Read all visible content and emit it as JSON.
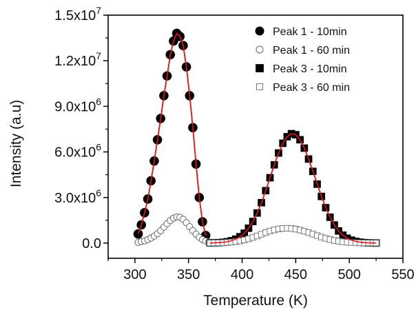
{
  "chart_data": {
    "type": "scatter",
    "xlabel": "Temperature (K)",
    "ylabel": "Intensity (a.u)",
    "xlim": [
      275,
      550
    ],
    "ylim": [
      -1000000,
      15000000
    ],
    "x_ticks": [
      300,
      350,
      400,
      450,
      500,
      550
    ],
    "x_tick_labels": [
      "300",
      "350",
      "400",
      "450",
      "500",
      "550"
    ],
    "y_ticks": [
      0,
      3000000,
      6000000,
      9000000,
      12000000,
      15000000
    ],
    "y_tick_labels": [
      {
        "mantissa": "0.0",
        "exp": ""
      },
      {
        "mantissa": "3.0x10",
        "exp": "6"
      },
      {
        "mantissa": "6.0x10",
        "exp": "6"
      },
      {
        "mantissa": "9.0x10",
        "exp": "6"
      },
      {
        "mantissa": "1.2x10",
        "exp": "7"
      },
      {
        "mantissa": "1.5x10",
        "exp": "7"
      }
    ],
    "legend_position": "top-right",
    "grid": false,
    "fit_color": "#e8141e",
    "series": [
      {
        "name": "Peak 1 - 10min",
        "marker": "circle-filled",
        "x": [
          303,
          306,
          309,
          312,
          315,
          318,
          321,
          324,
          327,
          330,
          333,
          336,
          339,
          342,
          345,
          348,
          351,
          354,
          357,
          360,
          363,
          366
        ],
        "y": [
          600000,
          1200000,
          2000000,
          2900000,
          4100000,
          5400000,
          6800000,
          8200000,
          9700000,
          11000000,
          12400000,
          13300000,
          13800000,
          13600000,
          13000000,
          11600000,
          9700000,
          7600000,
          5200000,
          3000000,
          1400000,
          500000
        ]
      },
      {
        "name": "Peak 1 - 60 min",
        "marker": "circle-open",
        "x": [
          303,
          306,
          309,
          312,
          315,
          318,
          321,
          324,
          327,
          330,
          333,
          336,
          339,
          342,
          345,
          348,
          351,
          354,
          357,
          360,
          363,
          366,
          369,
          372
        ],
        "y": [
          50000,
          100000,
          150000,
          230000,
          330000,
          460000,
          620000,
          820000,
          1050000,
          1280000,
          1480000,
          1640000,
          1720000,
          1700000,
          1560000,
          1340000,
          1080000,
          820000,
          580000,
          380000,
          230000,
          130000,
          70000,
          40000
        ]
      },
      {
        "name": "Peak 3 - 10min",
        "marker": "square-filled",
        "x": [
          370,
          374,
          378,
          382,
          386,
          390,
          394,
          398,
          402,
          406,
          410,
          414,
          418,
          422,
          426,
          430,
          434,
          438,
          442,
          446,
          450,
          454,
          458,
          462,
          466,
          470,
          474,
          478,
          482,
          486,
          490,
          494,
          498,
          502,
          506,
          510,
          514,
          518,
          522,
          525
        ],
        "y": [
          8000,
          15000,
          28000,
          50000,
          90000,
          155000,
          260000,
          420000,
          650000,
          980000,
          1420000,
          1980000,
          2660000,
          3450000,
          4300000,
          5150000,
          5930000,
          6570000,
          7000000,
          7200000,
          7130000,
          6800000,
          6250000,
          5530000,
          4720000,
          3880000,
          3070000,
          2330000,
          1700000,
          1190000,
          800000,
          520000,
          320000,
          190000,
          110000,
          60000,
          30000,
          15000,
          8000,
          4000
        ]
      },
      {
        "name": "Peak 3 - 60 min",
        "marker": "square-open",
        "x": [
          370,
          374,
          378,
          382,
          386,
          390,
          394,
          398,
          402,
          406,
          410,
          414,
          418,
          422,
          426,
          430,
          434,
          438,
          442,
          446,
          450,
          454,
          458,
          462,
          466,
          470,
          474,
          478,
          482,
          486,
          490,
          494,
          498,
          502,
          506,
          510,
          514,
          518,
          522,
          525
        ],
        "y": [
          5000,
          8000,
          14000,
          24000,
          40000,
          64000,
          98000,
          145000,
          205000,
          280000,
          370000,
          470000,
          580000,
          690000,
          790000,
          870000,
          930000,
          965000,
          975000,
          960000,
          920000,
          860000,
          780000,
          690000,
          590000,
          490000,
          395000,
          310000,
          235000,
          172000,
          122000,
          84000,
          56000,
          36000,
          23000,
          14000,
          8000,
          5000,
          3000,
          2000
        ]
      }
    ]
  }
}
